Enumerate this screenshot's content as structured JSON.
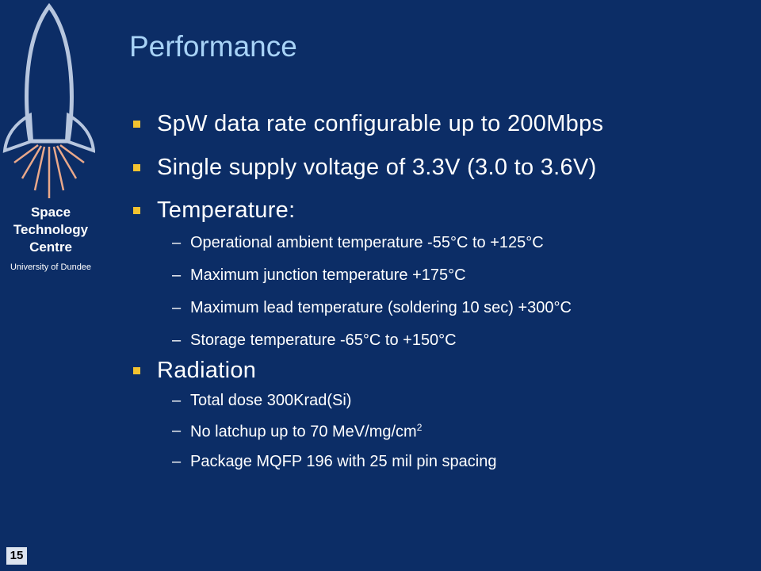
{
  "logo": {
    "lines": [
      "Space",
      "Technology",
      "Centre"
    ],
    "subtitle": "University of Dundee"
  },
  "title": "Performance",
  "bullets": [
    {
      "text": "SpW data rate configurable up to 200Mbps",
      "items": []
    },
    {
      "text": "Single supply voltage of 3.3V (3.0 to 3.6V)",
      "items": []
    },
    {
      "text": "Temperature:",
      "items": [
        {
          "text": "Operational ambient temperature -55°C to +125°C"
        },
        {
          "text": "Maximum junction temperature +175°C"
        },
        {
          "text": "Maximum lead temperature (soldering 10 sec) +300°C"
        },
        {
          "text": "Storage temperature -65°C to +150°C"
        }
      ]
    },
    {
      "text": "Radiation",
      "items": [
        {
          "text": "Total dose 300Krad(Si)"
        },
        {
          "text": "No latchup up to 70 MeV/mg/cm",
          "superscript": "2"
        },
        {
          "text": "Package MQFP 196 with 25 mil pin spacing"
        }
      ]
    }
  ],
  "slide_number": "15"
}
